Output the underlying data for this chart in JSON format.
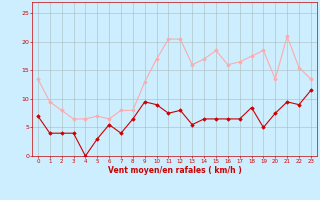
{
  "x": [
    0,
    1,
    2,
    3,
    4,
    5,
    6,
    7,
    8,
    9,
    10,
    11,
    12,
    13,
    14,
    15,
    16,
    17,
    18,
    19,
    20,
    21,
    22,
    23
  ],
  "avg_wind": [
    7,
    4,
    4,
    4,
    0,
    3,
    5.5,
    4,
    6.5,
    9.5,
    9,
    7.5,
    8,
    5.5,
    6.5,
    6.5,
    6.5,
    6.5,
    8.5,
    5,
    7.5,
    9.5,
    9,
    11.5
  ],
  "gusts": [
    13.5,
    9.5,
    8,
    6.5,
    6.5,
    7,
    6.5,
    8,
    8,
    13,
    17,
    20.5,
    20.5,
    16,
    17,
    18.5,
    16,
    16.5,
    17.5,
    18.5,
    13.5,
    21,
    15.5,
    13.5
  ],
  "avg_color": "#cc0000",
  "gust_color": "#ffaaaa",
  "bg_color": "#cceeff",
  "grid_color": "#aabbbb",
  "xlabel": "Vent moyen/en rafales ( km/h )",
  "ylim": [
    0,
    27
  ],
  "ytick_vals": [
    0,
    5,
    10,
    15,
    20,
    25
  ],
  "xlabel_color": "#cc0000",
  "tick_color": "#cc0000",
  "figsize": [
    3.2,
    2.0
  ],
  "dpi": 100
}
